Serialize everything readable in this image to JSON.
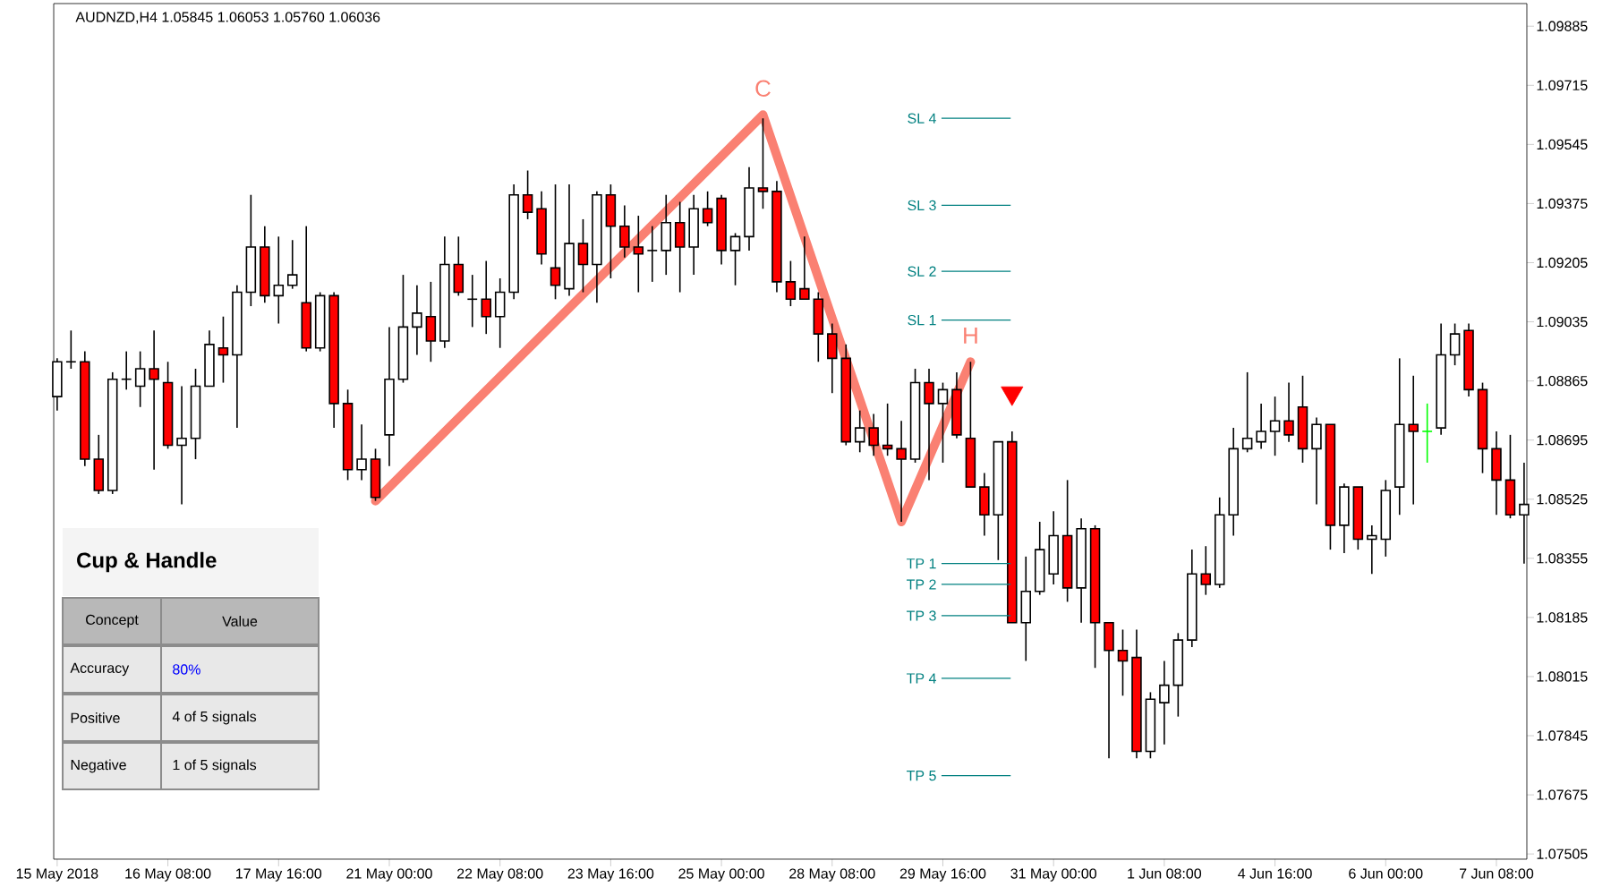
{
  "chart_data": {
    "type": "candlestick",
    "title": "AUDNZD,H4  1.05845 1.06053 1.05760 1.06036",
    "categories": [
      "15 May 2018",
      null,
      null,
      null,
      null,
      null,
      null,
      null,
      "16 May 08:00",
      null,
      null,
      null,
      null,
      null,
      null,
      null,
      "17 May 16:00",
      null,
      null,
      null,
      null,
      null,
      null,
      null,
      "21 May 00:00",
      null,
      null,
      null,
      null,
      null,
      null,
      null,
      "22 May 08:00",
      null,
      null,
      null,
      null,
      null,
      null,
      null,
      "23 May 16:00",
      null,
      null,
      null,
      null,
      null,
      null,
      null,
      "25 May 00:00",
      null,
      null,
      null,
      null,
      null,
      null,
      null,
      "28 May 08:00",
      null,
      null,
      null,
      null,
      null,
      null,
      null,
      "29 May 16:00",
      null,
      null,
      null,
      null,
      null,
      null,
      null,
      "31 May 00:00",
      null,
      null,
      null,
      null,
      null,
      null,
      null,
      "1 Jun 08:00",
      null,
      null,
      null,
      null,
      null,
      null,
      null,
      "4 Jun 16:00",
      null,
      null,
      null,
      null,
      null,
      null,
      null,
      "6 Jun 00:00",
      null,
      null,
      null,
      null,
      null,
      null,
      null,
      "7 Jun 08:00",
      null,
      null
    ],
    "ohlc": [
      [
        1.0882,
        1.0893,
        1.0878,
        1.0892
      ],
      [
        1.0892,
        1.0901,
        1.089,
        1.0892
      ],
      [
        1.0892,
        1.0895,
        1.0862,
        1.0864
      ],
      [
        1.0864,
        1.0871,
        1.0854,
        1.0855
      ],
      [
        1.0855,
        1.0889,
        1.0854,
        1.0887
      ],
      [
        1.0887,
        1.0895,
        1.0884,
        1.0887
      ],
      [
        1.0885,
        1.0895,
        1.0879,
        1.089
      ],
      [
        1.089,
        1.0901,
        1.0861,
        1.0887
      ],
      [
        1.0886,
        1.0892,
        1.0867,
        1.0868
      ],
      [
        1.0868,
        1.0885,
        1.0851,
        1.087
      ],
      [
        1.087,
        1.089,
        1.0864,
        1.0885
      ],
      [
        1.0885,
        1.0901,
        1.0885,
        1.0897
      ],
      [
        1.0896,
        1.0905,
        1.0886,
        1.0894
      ],
      [
        1.0894,
        1.0914,
        1.0873,
        1.0912
      ],
      [
        1.0912,
        1.094,
        1.0908,
        1.0925
      ],
      [
        1.0925,
        1.0931,
        1.0909,
        1.0911
      ],
      [
        1.0911,
        1.0928,
        1.0903,
        1.0914
      ],
      [
        1.0914,
        1.0927,
        1.0913,
        1.0917
      ],
      [
        1.0909,
        1.0931,
        1.0895,
        1.0896
      ],
      [
        1.0896,
        1.0912,
        1.0895,
        1.0911
      ],
      [
        1.0911,
        1.0912,
        1.0873,
        1.088
      ],
      [
        1.088,
        1.0884,
        1.0858,
        1.0861
      ],
      [
        1.0861,
        1.0874,
        1.0858,
        1.0864
      ],
      [
        1.0864,
        1.0867,
        1.0852,
        1.0853
      ],
      [
        1.0871,
        1.0902,
        1.0862,
        1.0887
      ],
      [
        1.0887,
        1.0917,
        1.0886,
        1.0902
      ],
      [
        1.0902,
        1.0914,
        1.0894,
        1.0906
      ],
      [
        1.0905,
        1.0915,
        1.0892,
        1.0898
      ],
      [
        1.0898,
        1.0928,
        1.0896,
        1.092
      ],
      [
        1.092,
        1.0928,
        1.0911,
        1.0912
      ],
      [
        1.091,
        1.0917,
        1.0902,
        1.091
      ],
      [
        1.091,
        1.0921,
        1.09,
        1.0905
      ],
      [
        1.0905,
        1.0916,
        1.0896,
        1.0912
      ],
      [
        1.0912,
        1.0943,
        1.091,
        1.094
      ],
      [
        1.094,
        1.0947,
        1.0933,
        1.0935
      ],
      [
        1.0936,
        1.0941,
        1.092,
        1.0923
      ],
      [
        1.0919,
        1.0943,
        1.091,
        1.0914
      ],
      [
        1.0913,
        1.0943,
        1.0911,
        1.0926
      ],
      [
        1.0926,
        1.0933,
        1.0912,
        1.092
      ],
      [
        1.092,
        1.0941,
        1.0909,
        1.094
      ],
      [
        1.094,
        1.0943,
        1.0916,
        1.0931
      ],
      [
        1.0931,
        1.0937,
        1.0922,
        1.0925
      ],
      [
        1.0925,
        1.0934,
        1.0912,
        1.0923
      ],
      [
        1.0924,
        1.0931,
        1.0915,
        1.0924
      ],
      [
        1.0924,
        1.094,
        1.0917,
        1.0932
      ],
      [
        1.0932,
        1.0938,
        1.0912,
        1.0925
      ],
      [
        1.0925,
        1.094,
        1.0917,
        1.0936
      ],
      [
        1.0936,
        1.0941,
        1.0931,
        1.0932
      ],
      [
        1.0939,
        1.094,
        1.092,
        1.0924
      ],
      [
        1.0924,
        1.0929,
        1.0914,
        1.0928
      ],
      [
        1.0928,
        1.0948,
        1.0924,
        1.0942
      ],
      [
        1.0942,
        1.0962,
        1.0936,
        1.0941
      ],
      [
        1.0941,
        1.0944,
        1.0912,
        1.0915
      ],
      [
        1.0915,
        1.0921,
        1.0908,
        1.091
      ],
      [
        1.0913,
        1.0928,
        1.091,
        1.091
      ],
      [
        1.091,
        1.0912,
        1.0892,
        1.09
      ],
      [
        1.09,
        1.0903,
        1.0883,
        1.0893
      ],
      [
        1.0893,
        1.0897,
        1.0868,
        1.0869
      ],
      [
        1.0869,
        1.0878,
        1.0866,
        1.0873
      ],
      [
        1.0873,
        1.0877,
        1.0865,
        1.0868
      ],
      [
        1.0868,
        1.088,
        1.0865,
        1.0867
      ],
      [
        1.0867,
        1.0875,
        1.0846,
        1.0864
      ],
      [
        1.0864,
        1.089,
        1.0863,
        1.0886
      ],
      [
        1.0886,
        1.089,
        1.0858,
        1.088
      ],
      [
        1.088,
        1.0886,
        1.0863,
        1.0884
      ],
      [
        1.0884,
        1.0889,
        1.087,
        1.0871
      ],
      [
        1.087,
        1.0892,
        1.0856,
        1.0856
      ],
      [
        1.0856,
        1.086,
        1.0842,
        1.0848
      ],
      [
        1.0848,
        1.0869,
        1.0835,
        1.0869
      ],
      [
        1.0869,
        1.0872,
        1.0817,
        1.0817
      ],
      [
        1.0817,
        1.0836,
        1.0806,
        1.0826
      ],
      [
        1.0826,
        1.0846,
        1.0825,
        1.0838
      ],
      [
        1.0831,
        1.0849,
        1.0828,
        1.0842
      ],
      [
        1.0842,
        1.0858,
        1.0823,
        1.0827
      ],
      [
        1.0827,
        1.0847,
        1.0817,
        1.0844
      ],
      [
        1.0844,
        1.0845,
        1.0804,
        1.0817
      ],
      [
        1.0817,
        1.0817,
        1.0778,
        1.0809
      ],
      [
        1.0809,
        1.0815,
        1.0796,
        1.0806
      ],
      [
        1.0807,
        1.0815,
        1.0778,
        1.078
      ],
      [
        1.078,
        1.0797,
        1.0778,
        1.0795
      ],
      [
        1.0794,
        1.0806,
        1.0782,
        1.0799
      ],
      [
        1.0799,
        1.0814,
        1.079,
        1.0812
      ],
      [
        1.0812,
        1.0838,
        1.081,
        1.0831
      ],
      [
        1.0831,
        1.0839,
        1.0825,
        1.0828
      ],
      [
        1.0828,
        1.0853,
        1.0827,
        1.0848
      ],
      [
        1.0848,
        1.0873,
        1.0842,
        1.0867
      ],
      [
        1.0867,
        1.0889,
        1.0866,
        1.087
      ],
      [
        1.0869,
        1.088,
        1.0867,
        1.0872
      ],
      [
        1.0872,
        1.0882,
        1.0865,
        1.0875
      ],
      [
        1.0875,
        1.0886,
        1.0869,
        1.0871
      ],
      [
        1.0879,
        1.0888,
        1.0863,
        1.0867
      ],
      [
        1.0867,
        1.0876,
        1.0851,
        1.0874
      ],
      [
        1.0874,
        1.0874,
        1.0838,
        1.0845
      ],
      [
        1.0845,
        1.0857,
        1.0837,
        1.0856
      ],
      [
        1.0856,
        1.0856,
        1.0838,
        1.0841
      ],
      [
        1.0841,
        1.0845,
        1.0831,
        1.0842
      ],
      [
        1.0841,
        1.0858,
        1.0836,
        1.0855
      ],
      [
        1.0856,
        1.0893,
        1.0848,
        1.0874
      ],
      [
        1.0874,
        1.0888,
        1.0851,
        1.0872
      ],
      [
        1.0872,
        1.088,
        1.0863,
        1.0872
      ],
      [
        1.0873,
        1.0903,
        1.0871,
        1.0894
      ],
      [
        1.0894,
        1.0903,
        1.0891,
        1.09
      ],
      [
        1.0901,
        1.0903,
        1.0882,
        1.0884
      ],
      [
        1.0884,
        1.0886,
        1.086,
        1.0867
      ],
      [
        1.0867,
        1.0872,
        1.0848,
        1.0858
      ],
      [
        1.0858,
        1.0871,
        1.0847,
        1.0848
      ],
      [
        1.0848,
        1.0863,
        1.0834,
        1.0851
      ]
    ],
    "colors": [
      "#ffffff",
      "#000000",
      "#ff0000",
      "#ff0000",
      "#ffffff",
      "#000000",
      "#ffffff",
      "#ff0000",
      "#ff0000",
      "#ffffff",
      "#ffffff",
      "#ffffff",
      "#ff0000",
      "#ffffff",
      "#ffffff",
      "#ff0000",
      "#ffffff",
      "#ffffff",
      "#ff0000",
      "#ffffff",
      "#ff0000",
      "#ff0000",
      "#ffffff",
      "#ff0000",
      "#ffffff",
      "#ffffff",
      "#ffffff",
      "#ff0000",
      "#ffffff",
      "#ff0000",
      "#000000",
      "#ff0000",
      "#ffffff",
      "#ffffff",
      "#ff0000",
      "#ff0000",
      "#ff0000",
      "#ffffff",
      "#ff0000",
      "#ffffff",
      "#ff0000",
      "#ff0000",
      "#ff0000",
      "#000000",
      "#ffffff",
      "#ff0000",
      "#ffffff",
      "#ff0000",
      "#ff0000",
      "#ffffff",
      "#ffffff",
      "#ff0000",
      "#ff0000",
      "#ff0000",
      "#ff0000",
      "#ff0000",
      "#ff0000",
      "#ff0000",
      "#ffffff",
      "#ff0000",
      "#ff0000",
      "#ff0000",
      "#ffffff",
      "#ff0000",
      "#ffffff",
      "#ff0000",
      "#ff0000",
      "#ff0000",
      "#ffffff",
      "#ff0000",
      "#ffffff",
      "#ffffff",
      "#ffffff",
      "#ff0000",
      "#ffffff",
      "#ff0000",
      "#ff0000",
      "#ff0000",
      "#ff0000",
      "#ffffff",
      "#ffffff",
      "#ffffff",
      "#ffffff",
      "#ff0000",
      "#ffffff",
      "#ffffff",
      "#ffffff",
      "#ffffff",
      "#ffffff",
      "#ff0000",
      "#ff0000",
      "#ffffff",
      "#ff0000",
      "#ffffff",
      "#ff0000",
      "#ffffff",
      "#ffffff",
      "#ffffff",
      "#ff0000",
      "#00ff00",
      "#ffffff",
      "#ffffff",
      "#ff0000",
      "#ff0000",
      "#ff0000",
      "#ff0000",
      "#ffffff"
    ],
    "series": [
      {
        "type": "line",
        "color": "#fa8072",
        "values": [
          null,
          null,
          null,
          null,
          null,
          null,
          null,
          null,
          null,
          null,
          null,
          null,
          null,
          null,
          null,
          null,
          null,
          null,
          null,
          null,
          null,
          null,
          null,
          1.0852,
          null,
          null,
          null,
          null,
          null,
          null,
          null,
          null,
          null,
          null,
          null,
          null,
          null,
          null,
          null,
          null,
          null,
          null,
          null,
          null,
          null,
          null,
          null,
          null,
          null,
          null,
          null,
          1.0963,
          null,
          null,
          null,
          null,
          null,
          null,
          null,
          null,
          null,
          1.0846,
          null,
          null,
          null,
          null,
          1.0892,
          null,
          null,
          null,
          null,
          null,
          null,
          null,
          null,
          null,
          null,
          null,
          null,
          null,
          null,
          null,
          null,
          null,
          null,
          null,
          null,
          null,
          null,
          null,
          null,
          null,
          null,
          null,
          null,
          null,
          null,
          null,
          null,
          null,
          null,
          null,
          null,
          null,
          null,
          null,
          null
        ]
      },
      {
        "type": "scatter",
        "color": "#ff0000",
        "marker": "triangle",
        "values": [
          null,
          null,
          null,
          null,
          null,
          null,
          null,
          null,
          null,
          null,
          null,
          null,
          null,
          null,
          null,
          null,
          null,
          null,
          null,
          null,
          null,
          null,
          null,
          null,
          null,
          null,
          null,
          null,
          null,
          null,
          null,
          null,
          null,
          null,
          null,
          null,
          null,
          null,
          null,
          null,
          null,
          null,
          null,
          null,
          null,
          null,
          null,
          null,
          null,
          null,
          null,
          null,
          null,
          null,
          null,
          null,
          null,
          null,
          null,
          null,
          null,
          null,
          null,
          null,
          null,
          null,
          null,
          null,
          null,
          1.0883,
          null,
          null,
          null,
          null,
          null,
          null,
          null,
          null,
          null,
          null,
          null,
          null,
          null,
          null,
          null,
          null,
          null,
          null,
          null,
          null,
          null,
          null,
          null,
          null,
          null,
          null,
          null,
          null,
          null,
          null,
          null,
          null,
          null,
          null,
          null,
          null,
          null
        ]
      }
    ],
    "ylim": [
      1.0749,
      1.0995
    ],
    "yticks": [
      1.07505,
      1.07675,
      1.07845,
      1.08015,
      1.08185,
      1.08355,
      1.08525,
      1.08695,
      1.08865,
      1.09035,
      1.09205,
      1.09375,
      1.09545,
      1.09715,
      1.09885
    ],
    "ref_lines": [
      {
        "axis": "y",
        "value": 1.0962,
        "label": "SL 4",
        "color": "#008080"
      },
      {
        "axis": "y",
        "value": 1.0937,
        "label": "SL 3",
        "color": "#008080"
      },
      {
        "axis": "y",
        "value": 1.0918,
        "label": "SL 2",
        "color": "#008080"
      },
      {
        "axis": "y",
        "value": 1.0904,
        "label": "SL 1",
        "color": "#008080"
      },
      {
        "axis": "y",
        "value": 1.0834,
        "label": "TP 1",
        "color": "#008080"
      },
      {
        "axis": "y",
        "value": 1.0828,
        "label": "TP 2",
        "color": "#008080"
      },
      {
        "axis": "y",
        "value": 1.0819,
        "label": "TP 3",
        "color": "#008080"
      },
      {
        "axis": "y",
        "value": 1.0801,
        "label": "TP 4",
        "color": "#008080"
      },
      {
        "axis": "y",
        "value": 1.0773,
        "label": "TP 5",
        "color": "#008080"
      }
    ],
    "annotations": [
      "Cup & Handle",
      "Concept",
      "Value",
      "Accuracy",
      "80%",
      "Positive",
      "4 of 5 signals",
      "Negative",
      "1 of 5 signals",
      "C",
      "H"
    ]
  }
}
